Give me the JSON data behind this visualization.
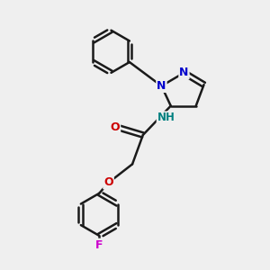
{
  "bg_color": "#efefef",
  "bond_color": "#1a1a1a",
  "bond_width": 1.8,
  "atom_colors": {
    "N": "#0000cc",
    "O": "#cc0000",
    "F": "#cc00cc",
    "NH": "#008080",
    "C": "#1a1a1a"
  },
  "font_size": 8.5,
  "fig_bg": "#efefef"
}
